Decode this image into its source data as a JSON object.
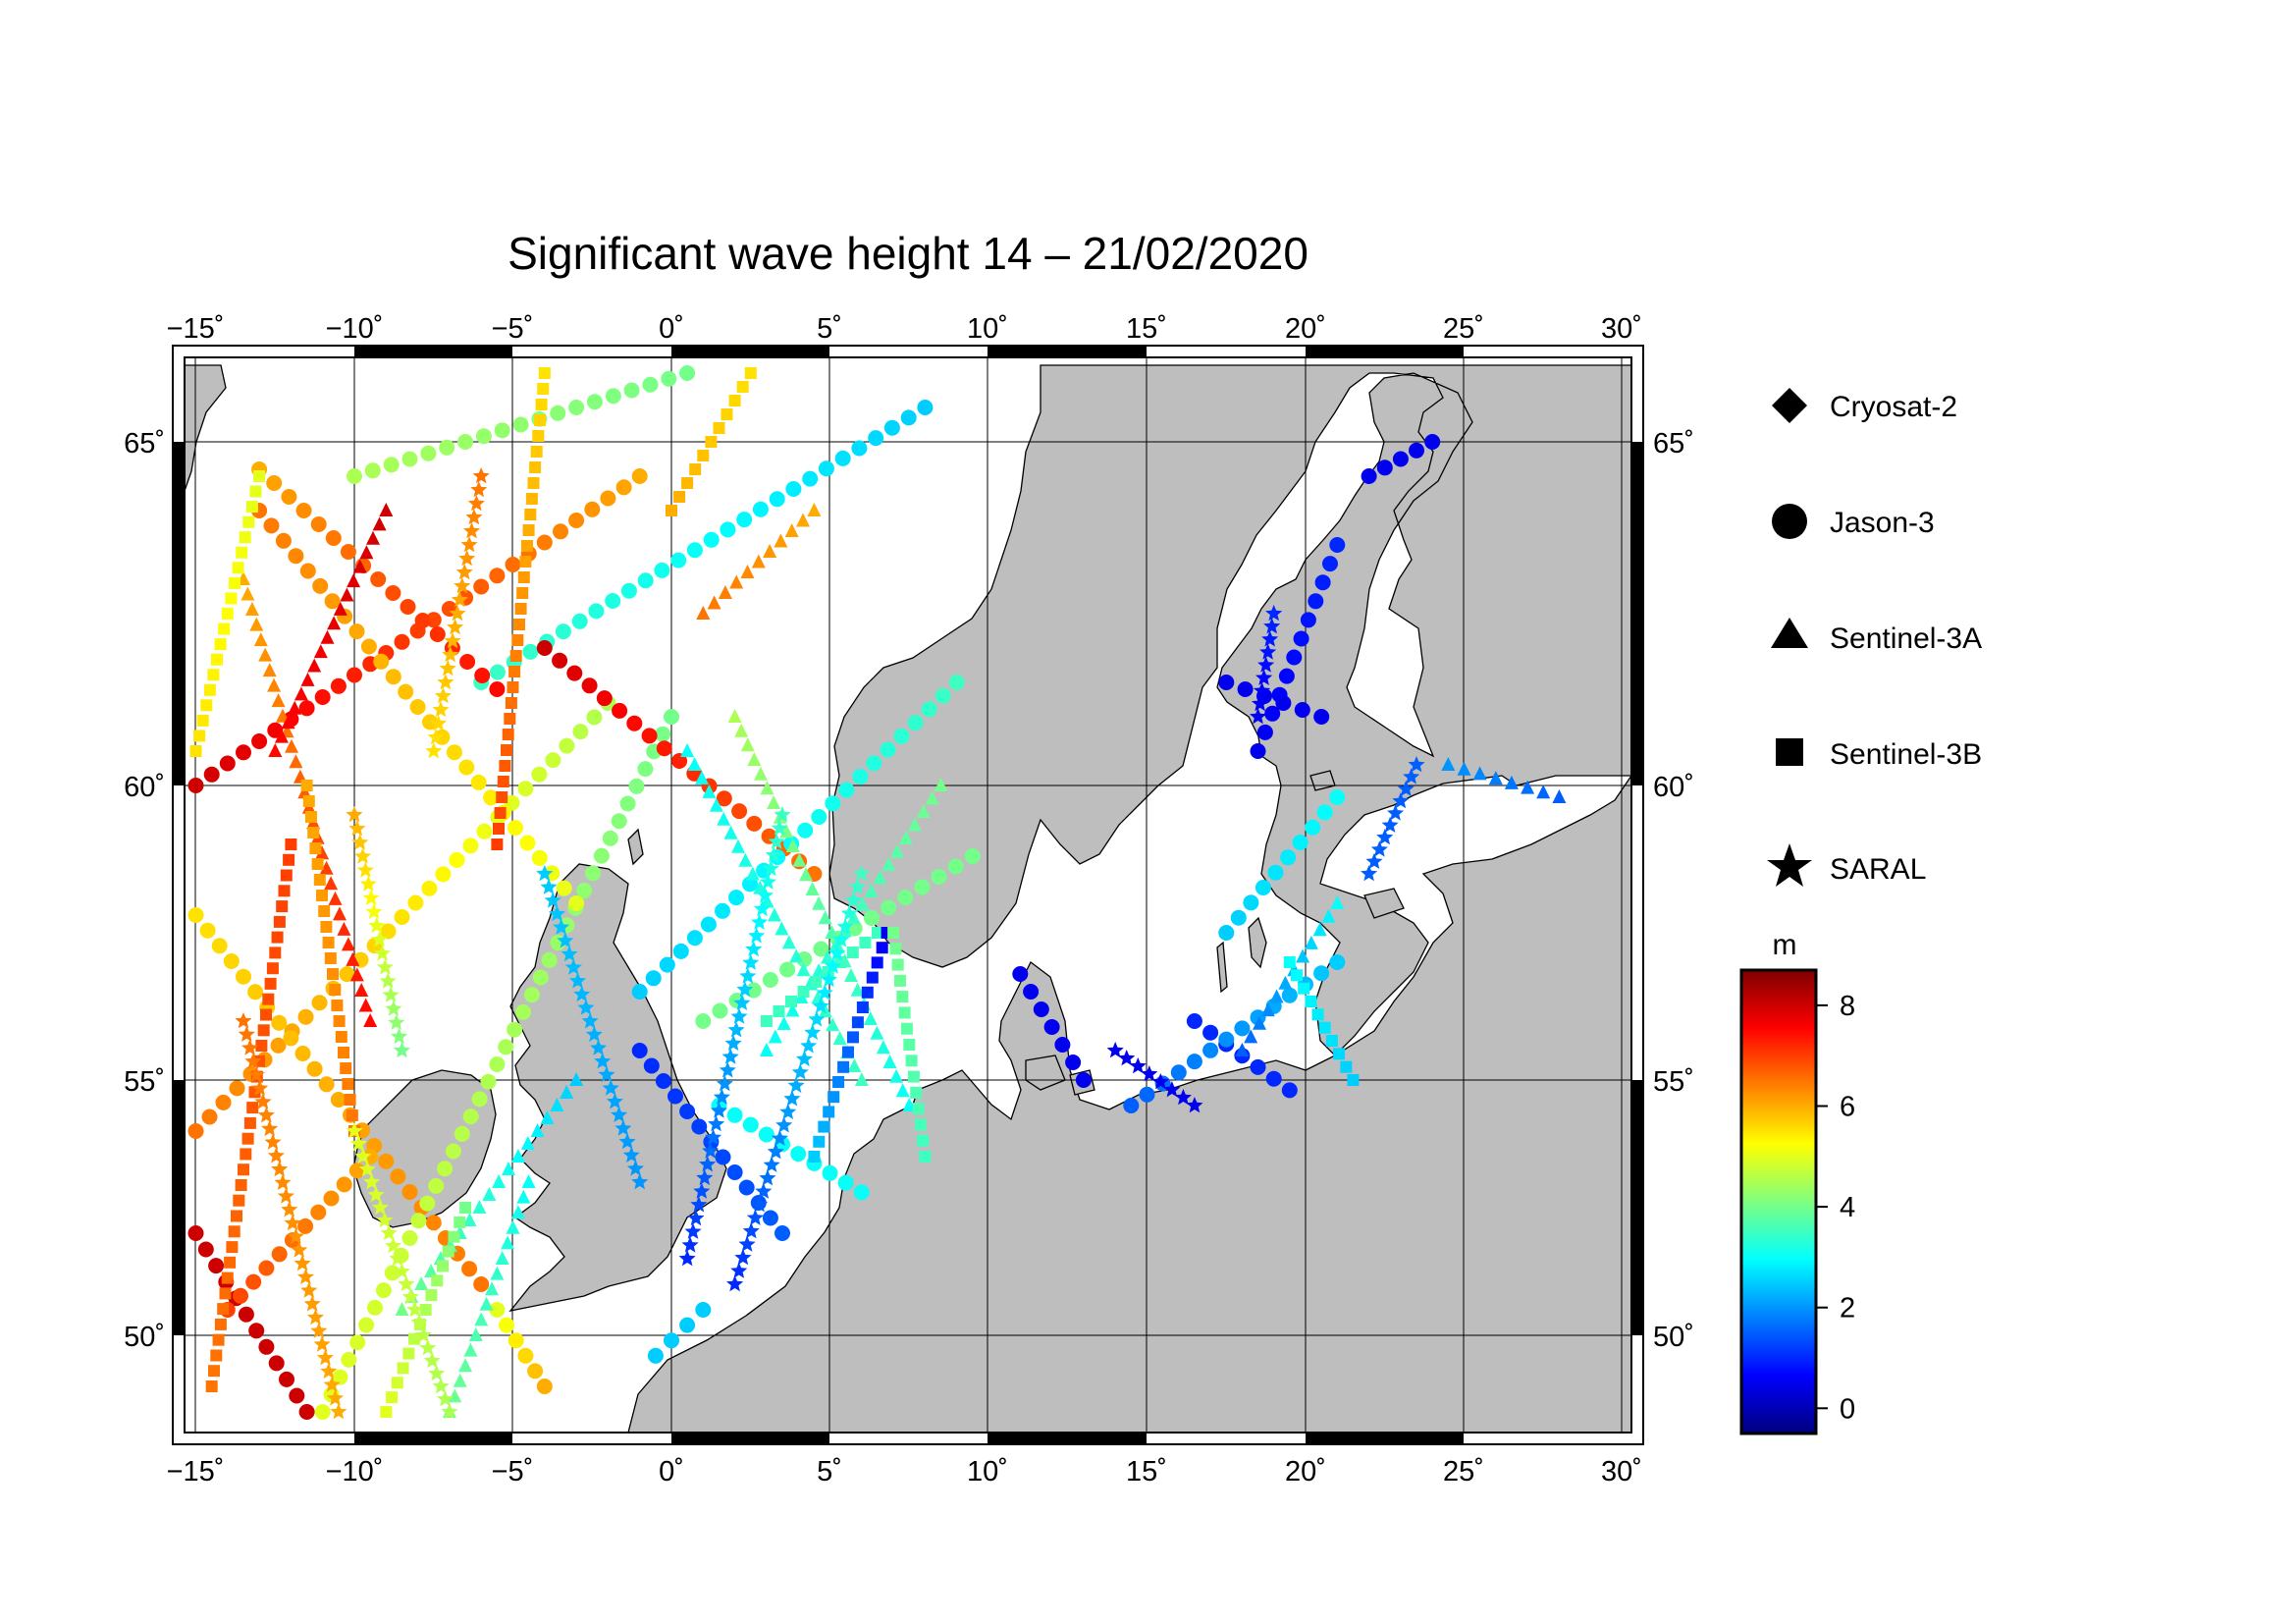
{
  "title": "Significant wave height 14 – 21/02/2020",
  "map": {
    "lon_range": [
      -15.5,
      30.5
    ],
    "lat_range": [
      48.3,
      66.2
    ],
    "lon_ticks": [
      -15,
      -10,
      -5,
      0,
      5,
      10,
      15,
      20,
      25,
      30
    ],
    "lat_ticks": [
      50,
      55,
      60,
      65
    ],
    "lon_tick_labels": [
      "−15˚",
      "−10˚",
      "−5˚",
      "0˚",
      "5˚",
      "10˚",
      "15˚",
      "20˚",
      "25˚",
      "30˚"
    ],
    "lat_tick_labels": [
      "50˚",
      "55˚",
      "60˚",
      "65˚"
    ],
    "land_color": "#bebebe",
    "sea_color": "#ffffff",
    "grid": true
  },
  "legend": {
    "items": [
      {
        "satellite": "Cryosat-2",
        "symbol": "diamond-icon"
      },
      {
        "satellite": "Jason-3",
        "symbol": "circle-icon"
      },
      {
        "satellite": "Sentinel-3A",
        "symbol": "triangle-icon"
      },
      {
        "satellite": "Sentinel-3B",
        "symbol": "square-icon"
      },
      {
        "satellite": "SARAL",
        "symbol": "star-icon"
      }
    ]
  },
  "colorbar": {
    "unit": "m",
    "min": -0.5,
    "max": 8.7,
    "ticks": [
      0,
      2,
      4,
      6,
      8
    ],
    "tick_labels": [
      "0",
      "2",
      "4",
      "6",
      "8"
    ],
    "colormap": "jet"
  },
  "chart_data": {
    "type": "scatter",
    "title": "Significant wave height 14 – 21/02/2020",
    "value_unit": "m",
    "x_axis": "longitude",
    "y_axis": "latitude",
    "tracks": [
      {
        "satellite": "Jason-3",
        "from": [
          -15.0,
          54.0
        ],
        "to": [
          -2.0,
          61.2
        ],
        "swh": [
          6.5,
          4.5
        ]
      },
      {
        "satellite": "Jason-3",
        "from": [
          -15.0,
          60.0
        ],
        "to": [
          -1.0,
          64.5
        ],
        "swh": [
          8.0,
          6.0
        ]
      },
      {
        "satellite": "Jason-3",
        "from": [
          -15.0,
          57.8
        ],
        "to": [
          -6.0,
          51.0
        ],
        "swh": [
          5.5,
          6.5
        ]
      },
      {
        "satellite": "Jason-3",
        "from": [
          -11.0,
          48.5
        ],
        "to": [
          0.0,
          61.0
        ],
        "swh": [
          5.0,
          4.0
        ]
      },
      {
        "satellite": "Jason-3",
        "from": [
          -13.0,
          64.0
        ],
        "to": [
          -3.0,
          58.0
        ],
        "swh": [
          6.5,
          5.0
        ]
      },
      {
        "satellite": "Jason-3",
        "from": [
          -15.0,
          52.0
        ],
        "to": [
          -11.5,
          48.5
        ],
        "swh": [
          8.0,
          8.0
        ]
      },
      {
        "satellite": "Jason-3",
        "from": [
          -14.0,
          50.5
        ],
        "to": [
          -9.5,
          53.5
        ],
        "swh": [
          7.0,
          6.0
        ]
      },
      {
        "satellite": "Jason-3",
        "from": [
          -10.0,
          64.5
        ],
        "to": [
          0.5,
          66.0
        ],
        "swh": [
          4.5,
          4.0
        ]
      },
      {
        "satellite": "Jason-3",
        "from": [
          -6.0,
          61.5
        ],
        "to": [
          8.0,
          65.5
        ],
        "swh": [
          3.5,
          2.5
        ]
      },
      {
        "satellite": "Jason-3",
        "from": [
          -4.0,
          62.0
        ],
        "to": [
          4.5,
          58.5
        ],
        "swh": [
          8.0,
          6.5
        ]
      },
      {
        "satellite": "Jason-3",
        "from": [
          -13.0,
          64.6
        ],
        "to": [
          -5.5,
          61.4
        ],
        "swh": [
          6.0,
          7.5
        ]
      },
      {
        "satellite": "Jason-3",
        "from": [
          -1.0,
          56.5
        ],
        "to": [
          9.0,
          61.5
        ],
        "swh": [
          2.5,
          3.5
        ]
      },
      {
        "satellite": "Jason-3",
        "from": [
          1.0,
          56.0
        ],
        "to": [
          9.5,
          58.8
        ],
        "swh": [
          4.0,
          4.0
        ]
      },
      {
        "satellite": "Jason-3",
        "from": [
          -1.0,
          55.5
        ],
        "to": [
          3.5,
          52.0
        ],
        "swh": [
          1.0,
          1.5
        ]
      },
      {
        "satellite": "Jason-3",
        "from": [
          1.5,
          54.5
        ],
        "to": [
          6.0,
          52.8
        ],
        "swh": [
          3.0,
          3.0
        ]
      },
      {
        "satellite": "Jason-3",
        "from": [
          -5.5,
          50.5
        ],
        "to": [
          -4.0,
          49.0
        ],
        "swh": [
          5.0,
          6.0
        ]
      },
      {
        "satellite": "Jason-3",
        "from": [
          -0.5,
          49.6
        ],
        "to": [
          1.0,
          50.5
        ],
        "swh": [
          2.5,
          2.5
        ]
      },
      {
        "satellite": "Jason-3",
        "from": [
          11.0,
          56.8
        ],
        "to": [
          13.0,
          55.0
        ],
        "swh": [
          0.5,
          0.5
        ]
      },
      {
        "satellite": "Jason-3",
        "from": [
          16.5,
          56.0
        ],
        "to": [
          19.5,
          54.8
        ],
        "swh": [
          1.0,
          1.0
        ]
      },
      {
        "satellite": "Jason-3",
        "from": [
          17.5,
          57.5
        ],
        "to": [
          21.0,
          59.8
        ],
        "swh": [
          2.5,
          3.0
        ]
      },
      {
        "satellite": "Jason-3",
        "from": [
          14.5,
          54.5
        ],
        "to": [
          21.0,
          57.0
        ],
        "swh": [
          1.5,
          2.5
        ]
      },
      {
        "satellite": "Jason-3",
        "from": [
          18.5,
          60.5
        ],
        "to": [
          21.0,
          63.5
        ],
        "swh": [
          0.5,
          1.0
        ]
      },
      {
        "satellite": "Jason-3",
        "from": [
          17.5,
          61.5
        ],
        "to": [
          20.5,
          61.0
        ],
        "swh": [
          0.5,
          0.5
        ]
      },
      {
        "satellite": "Jason-3",
        "from": [
          22.0,
          64.5
        ],
        "to": [
          24.0,
          65.0
        ],
        "swh": [
          0.5,
          0.5
        ]
      },
      {
        "satellite": "Sentinel-3A",
        "from": [
          -13.5,
          63.0
        ],
        "to": [
          -9.5,
          56.0
        ],
        "swh": [
          6.0,
          7.5
        ]
      },
      {
        "satellite": "Sentinel-3A",
        "from": [
          -12.5,
          60.5
        ],
        "to": [
          -9.0,
          64.0
        ],
        "swh": [
          7.5,
          8.0
        ]
      },
      {
        "satellite": "Sentinel-3A",
        "from": [
          -7.0,
          48.5
        ],
        "to": [
          -4.5,
          53.0
        ],
        "swh": [
          4.0,
          3.0
        ]
      },
      {
        "satellite": "Sentinel-3A",
        "from": [
          -8.5,
          50.5
        ],
        "to": [
          -3.0,
          55.0
        ],
        "swh": [
          4.0,
          2.5
        ]
      },
      {
        "satellite": "Sentinel-3A",
        "from": [
          0.5,
          60.5
        ],
        "to": [
          6.0,
          55.0
        ],
        "swh": [
          3.0,
          3.5
        ]
      },
      {
        "satellite": "Sentinel-3A",
        "from": [
          2.0,
          61.0
        ],
        "to": [
          7.5,
          54.5
        ],
        "swh": [
          4.5,
          3.0
        ]
      },
      {
        "satellite": "Sentinel-3A",
        "from": [
          3.0,
          55.5
        ],
        "to": [
          8.5,
          60.0
        ],
        "swh": [
          3.0,
          4.0
        ]
      },
      {
        "satellite": "Sentinel-3A",
        "from": [
          1.0,
          62.5
        ],
        "to": [
          4.5,
          64.0
        ],
        "swh": [
          6.5,
          6.0
        ]
      },
      {
        "satellite": "Sentinel-3A",
        "from": [
          18.0,
          55.5
        ],
        "to": [
          21.0,
          58.0
        ],
        "swh": [
          1.5,
          3.0
        ]
      },
      {
        "satellite": "Sentinel-3A",
        "from": [
          24.5,
          60.3
        ],
        "to": [
          28.0,
          59.8
        ],
        "swh": [
          2.0,
          1.5
        ]
      },
      {
        "satellite": "Sentinel-3B",
        "from": [
          -15.0,
          60.5
        ],
        "to": [
          -13.0,
          64.5
        ],
        "swh": [
          5.5,
          5.0
        ]
      },
      {
        "satellite": "Sentinel-3B",
        "from": [
          -14.5,
          49.0
        ],
        "to": [
          -12.0,
          59.0
        ],
        "swh": [
          6.5,
          7.0
        ]
      },
      {
        "satellite": "Sentinel-3B",
        "from": [
          -11.5,
          60.0
        ],
        "to": [
          -10.0,
          54.0
        ],
        "swh": [
          6.0,
          6.5
        ]
      },
      {
        "satellite": "Sentinel-3B",
        "from": [
          -9.0,
          48.5
        ],
        "to": [
          -6.5,
          52.5
        ],
        "swh": [
          5.0,
          4.0
        ]
      },
      {
        "satellite": "Sentinel-3B",
        "from": [
          -5.5,
          59.0
        ],
        "to": [
          -4.0,
          66.0
        ],
        "swh": [
          7.0,
          5.5
        ]
      },
      {
        "satellite": "Sentinel-3B",
        "from": [
          3.0,
          56.0
        ],
        "to": [
          6.5,
          57.5
        ],
        "swh": [
          3.5,
          3.5
        ]
      },
      {
        "satellite": "Sentinel-3B",
        "from": [
          4.5,
          53.5
        ],
        "to": [
          6.8,
          57.5
        ],
        "swh": [
          2.5,
          0.5
        ]
      },
      {
        "satellite": "Sentinel-3B",
        "from": [
          7.0,
          57.5
        ],
        "to": [
          8.0,
          53.5
        ],
        "swh": [
          4.0,
          3.5
        ]
      },
      {
        "satellite": "Sentinel-3B",
        "from": [
          21.5,
          55.0
        ],
        "to": [
          19.5,
          57.0
        ],
        "swh": [
          2.5,
          3.0
        ]
      },
      {
        "satellite": "Sentinel-3B",
        "from": [
          0.0,
          64.0
        ],
        "to": [
          2.5,
          66.0
        ],
        "swh": [
          6.0,
          5.5
        ]
      },
      {
        "satellite": "SARAL",
        "from": [
          -13.5,
          56.0
        ],
        "to": [
          -10.5,
          48.5
        ],
        "swh": [
          6.5,
          6.0
        ]
      },
      {
        "satellite": "SARAL",
        "from": [
          -10.0,
          54.0
        ],
        "to": [
          -7.0,
          48.5
        ],
        "swh": [
          5.0,
          4.5
        ]
      },
      {
        "satellite": "SARAL",
        "from": [
          -10.0,
          59.5
        ],
        "to": [
          -8.5,
          55.5
        ],
        "swh": [
          6.0,
          4.0
        ]
      },
      {
        "satellite": "SARAL",
        "from": [
          -6.0,
          64.5
        ],
        "to": [
          -7.5,
          60.5
        ],
        "swh": [
          6.5,
          5.5
        ]
      },
      {
        "satellite": "SARAL",
        "from": [
          -4.0,
          58.5
        ],
        "to": [
          -1.0,
          53.0
        ],
        "swh": [
          2.5,
          2.0
        ]
      },
      {
        "satellite": "SARAL",
        "from": [
          3.5,
          59.5
        ],
        "to": [
          0.5,
          51.5
        ],
        "swh": [
          3.5,
          1.0
        ]
      },
      {
        "satellite": "SARAL",
        "from": [
          6.0,
          58.5
        ],
        "to": [
          2.0,
          51.0
        ],
        "swh": [
          3.5,
          1.0
        ]
      },
      {
        "satellite": "SARAL",
        "from": [
          14.0,
          55.5
        ],
        "to": [
          16.5,
          54.5
        ],
        "swh": [
          0.5,
          0.5
        ]
      },
      {
        "satellite": "SARAL",
        "from": [
          22.0,
          58.5
        ],
        "to": [
          23.5,
          60.3
        ],
        "swh": [
          1.5,
          1.5
        ]
      },
      {
        "satellite": "SARAL",
        "from": [
          18.5,
          61.0
        ],
        "to": [
          19.0,
          62.5
        ],
        "swh": [
          0.5,
          1.0
        ]
      }
    ]
  }
}
